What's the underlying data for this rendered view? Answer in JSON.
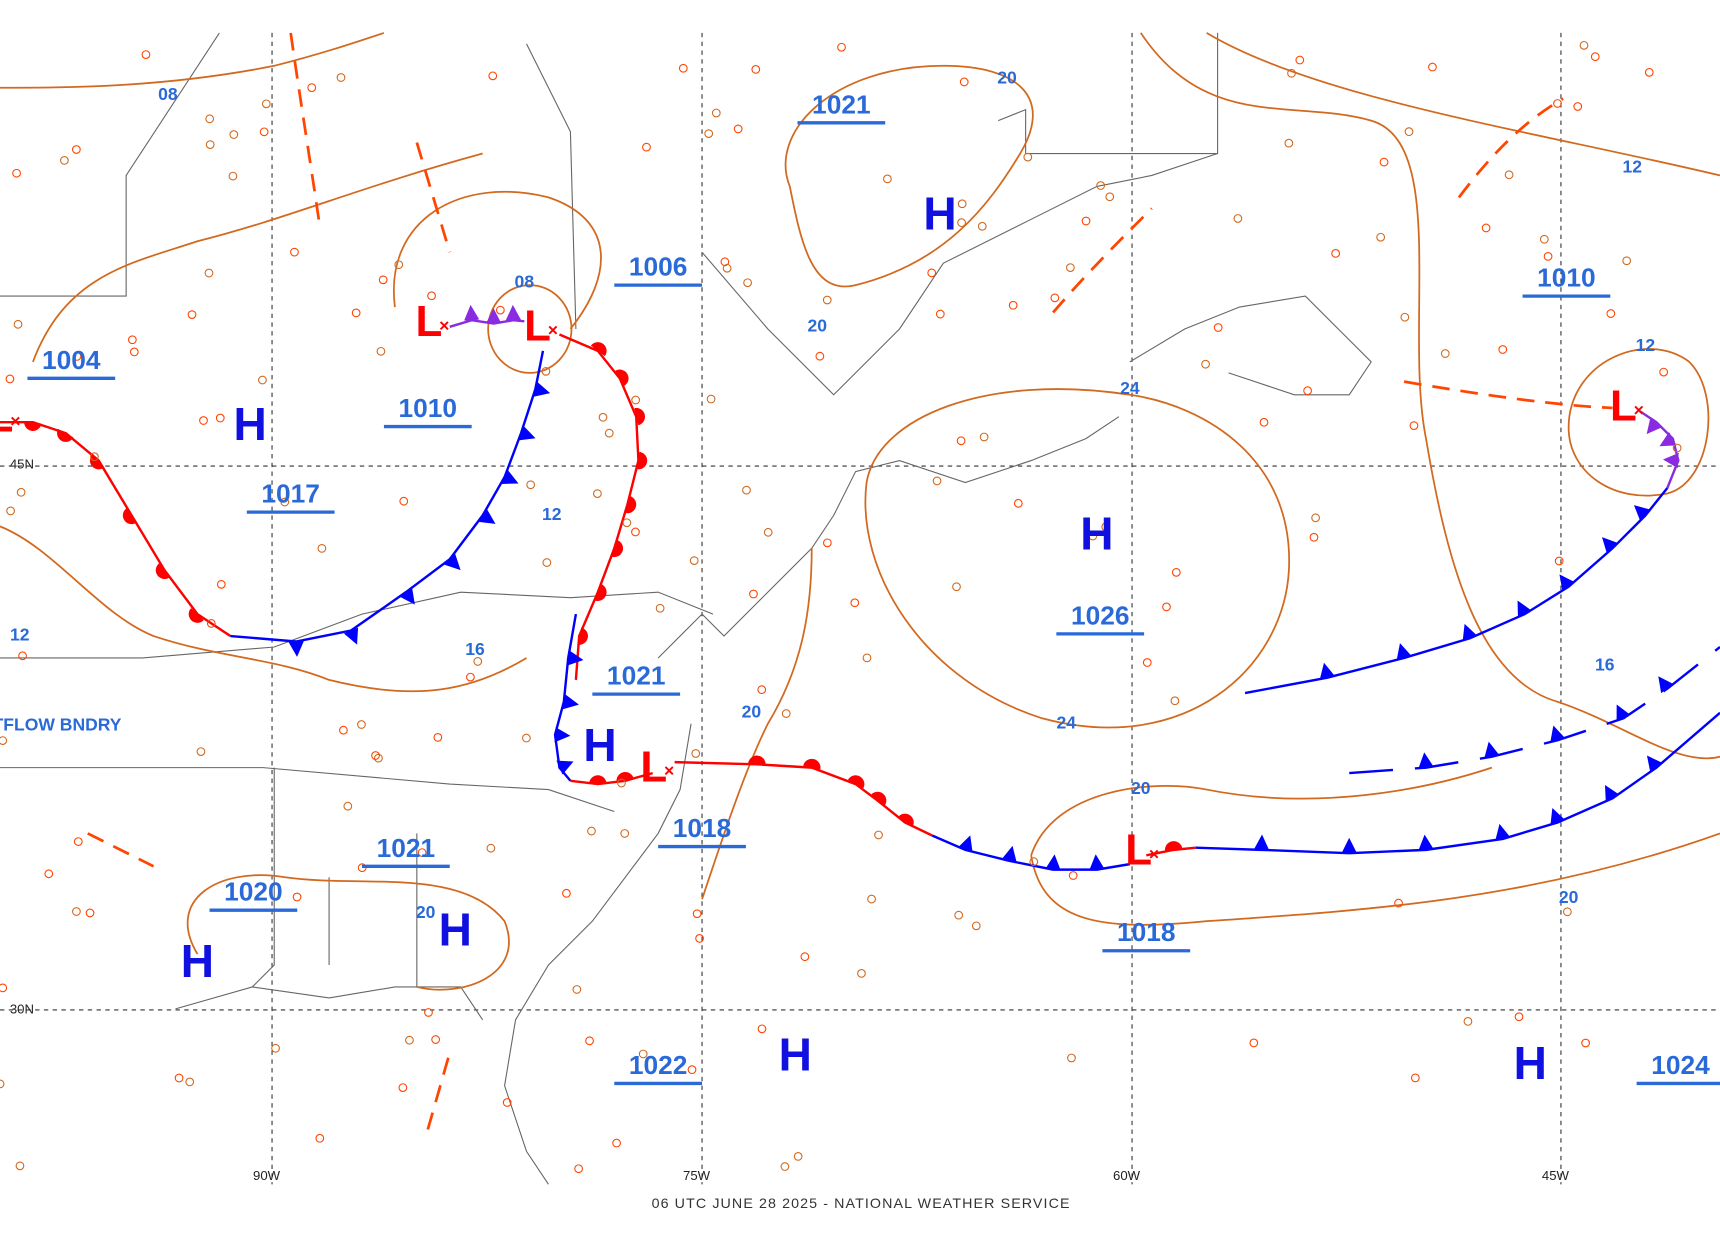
{
  "map": {
    "footer": "06 UTC JUNE 28 2025 - NATIONAL WEATHER SERVICE",
    "annotation": "OUTFLOW BNDRY",
    "grid_labels": [
      "90W",
      "75W",
      "60W",
      "45W",
      "45N",
      "30N"
    ],
    "highs": [
      "H",
      "H",
      "H",
      "H",
      "H",
      "H",
      "H",
      "H"
    ],
    "lows": [
      "L",
      "L",
      "L",
      "L",
      "L",
      "L"
    ],
    "pressure_labels": [
      "1021",
      "1006",
      "1010",
      "1004",
      "1010",
      "1017",
      "1026",
      "1021",
      "1018",
      "1021",
      "1020",
      "1018",
      "1022",
      "1024"
    ],
    "isobar_labels": [
      "08",
      "20",
      "08",
      "20",
      "24",
      "12",
      "12",
      "12",
      "16",
      "20",
      "16",
      "24",
      "20",
      "20",
      "12",
      "20"
    ]
  }
}
